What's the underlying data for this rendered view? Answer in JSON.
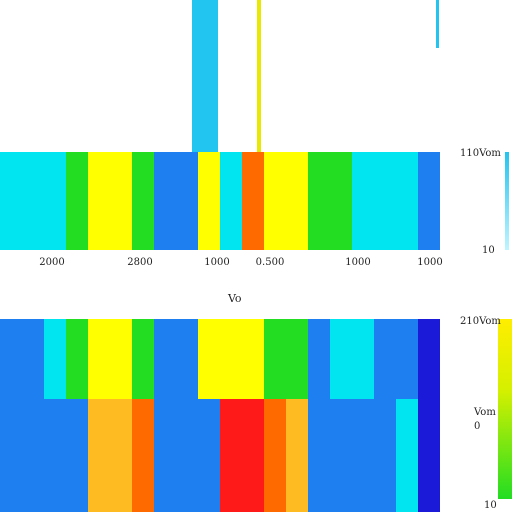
{
  "chart_data": [
    {
      "type": "heatmap",
      "title": "",
      "xlabel": "Vo",
      "x_tick_labels": [
        "2000",
        "2800",
        "1000",
        "0.500",
        "1000",
        "1000"
      ],
      "rows": [
        {
          "name": "",
          "cells": [
            "#00e5f0",
            "#00e5f0",
            "#00e5f0",
            "#22dd22",
            "#ffff00",
            "#ffff00",
            "#22dd22",
            "#1e7ff0",
            "#1e7ff0",
            "#ffff00",
            "#00e5f0",
            "#ff6a00",
            "#ffff00",
            "#ffff00",
            "#22dd22",
            "#22dd22",
            "#00e5f0",
            "#00e5f0",
            "#00e5f0",
            "#1e7ff0"
          ]
        }
      ],
      "colorbar": {
        "max_label": "110Vom",
        "min_label": "10"
      }
    },
    {
      "type": "heatmap",
      "title": "",
      "xlabel": "",
      "rows": [
        {
          "name": "",
          "cells": [
            "#1e7ff0",
            "#1e7ff0",
            "#00e5f0",
            "#22dd22",
            "#ffff00",
            "#ffff00",
            "#22dd22",
            "#1e7ff0",
            "#1e7ff0",
            "#ffff00",
            "#ffff00",
            "#ffff00",
            "#22dd22",
            "#22dd22",
            "#1e7ff0",
            "#00e5f0",
            "#00e5f0",
            "#1e7ff0",
            "#1e7ff0",
            "#1a1ad8"
          ]
        },
        {
          "name": "",
          "cells": [
            "#1e7ff0",
            "#1e7ff0",
            "#1e7ff0",
            "#1e7ff0",
            "#ffbb22",
            "#ffbb22",
            "#ff6a00",
            "#1e7ff0",
            "#1e7ff0",
            "#1e7ff0",
            "#ff1a1a",
            "#ff1a1a",
            "#ff6a00",
            "#ffbb22",
            "#1e7ff0",
            "#1e7ff0",
            "#1e7ff0",
            "#1e7ff0",
            "#00e5f0",
            "#1a1ad8"
          ]
        }
      ],
      "colorbar": {
        "max_label": "210Vom",
        "mid_label": "Vom",
        "mid_sub_label": "0",
        "min_label": "10"
      }
    }
  ]
}
